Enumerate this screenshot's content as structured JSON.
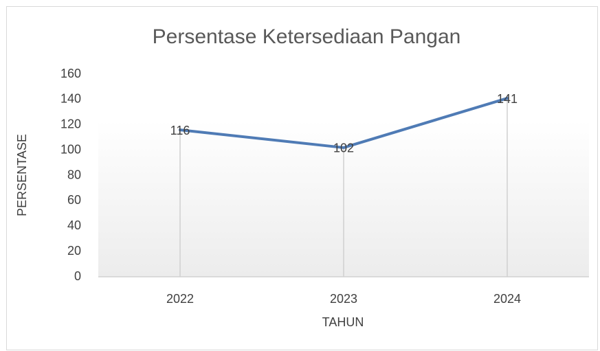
{
  "chart_data": {
    "type": "line",
    "title": "Persentase Ketersediaan Pangan",
    "x_label": "TAHUN",
    "y_label": "PERSENTASE",
    "categories": [
      "2022",
      "2023",
      "2024"
    ],
    "series": [
      {
        "name": "Persentase",
        "color": "#4f7bb5",
        "values": [
          116,
          102,
          141
        ]
      }
    ],
    "ylim": [
      0,
      160
    ],
    "yticks": [
      0,
      20,
      40,
      60,
      80,
      100,
      120,
      140,
      160
    ],
    "grid": false,
    "drop_lines": true,
    "data_labels": true
  }
}
